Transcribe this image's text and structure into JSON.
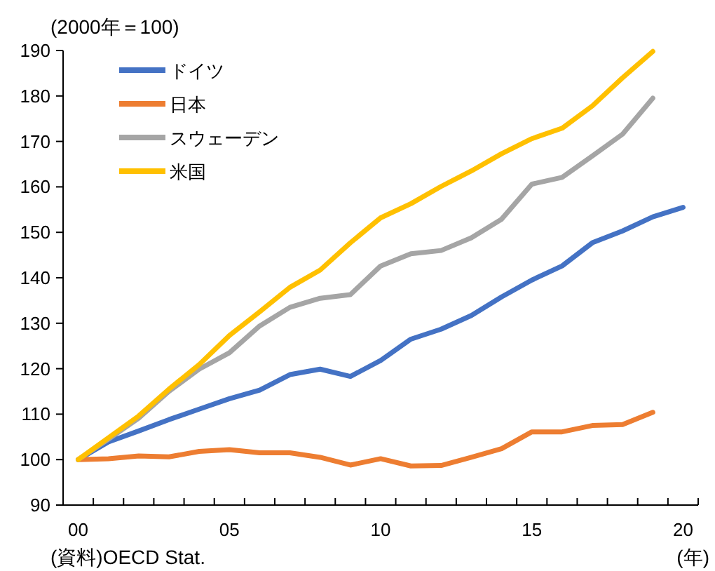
{
  "chart_data": {
    "type": "line",
    "ylabel": "(2000年＝100)",
    "xlabel": "(年)",
    "annotations": [
      "(資料)OECD Stat."
    ],
    "categories": [
      "00",
      null,
      null,
      null,
      null,
      "05",
      null,
      null,
      null,
      null,
      "10",
      null,
      null,
      null,
      null,
      "15",
      null,
      null,
      null,
      null,
      "20"
    ],
    "series": [
      {
        "name": "ドイツ",
        "color": "#4472c4",
        "values": [
          100,
          103.9,
          106.3,
          108.8,
          111.1,
          113.4,
          115.3,
          118.7,
          119.9,
          118.3,
          121.8,
          126.5,
          128.7,
          131.7,
          135.8,
          139.5,
          142.6,
          147.7,
          150.3,
          153.4,
          155.5
        ]
      },
      {
        "name": "日本",
        "color": "#ed7d31",
        "values": [
          100,
          100.2,
          100.8,
          100.6,
          101.8,
          102.2,
          101.5,
          101.5,
          100.5,
          98.8,
          100.2,
          98.6,
          98.7,
          100.5,
          102.4,
          106.1,
          106.1,
          107.5,
          107.7,
          110.4,
          null
        ]
      },
      {
        "name": "スウェーデン",
        "color": "#a5a5a5",
        "values": [
          100,
          104.5,
          109.1,
          115,
          119.9,
          123.5,
          129.4,
          133.5,
          135.5,
          136.3,
          142.6,
          145.3,
          146,
          148.8,
          152.9,
          160.6,
          162.1,
          166.8,
          171.6,
          179.5,
          null
        ]
      },
      {
        "name": "米国",
        "color": "#ffc000",
        "values": [
          100,
          104.8,
          109.6,
          115.5,
          120.9,
          127.3,
          132.5,
          137.9,
          141.7,
          147.7,
          153.2,
          156.3,
          160.1,
          163.5,
          167.3,
          170.6,
          172.9,
          177.8,
          184,
          189.8,
          null
        ]
      }
    ],
    "ylim": [
      90,
      190
    ],
    "yticks": [
      90,
      100,
      110,
      120,
      130,
      140,
      150,
      160,
      170,
      180,
      190
    ],
    "legend": "top left"
  }
}
